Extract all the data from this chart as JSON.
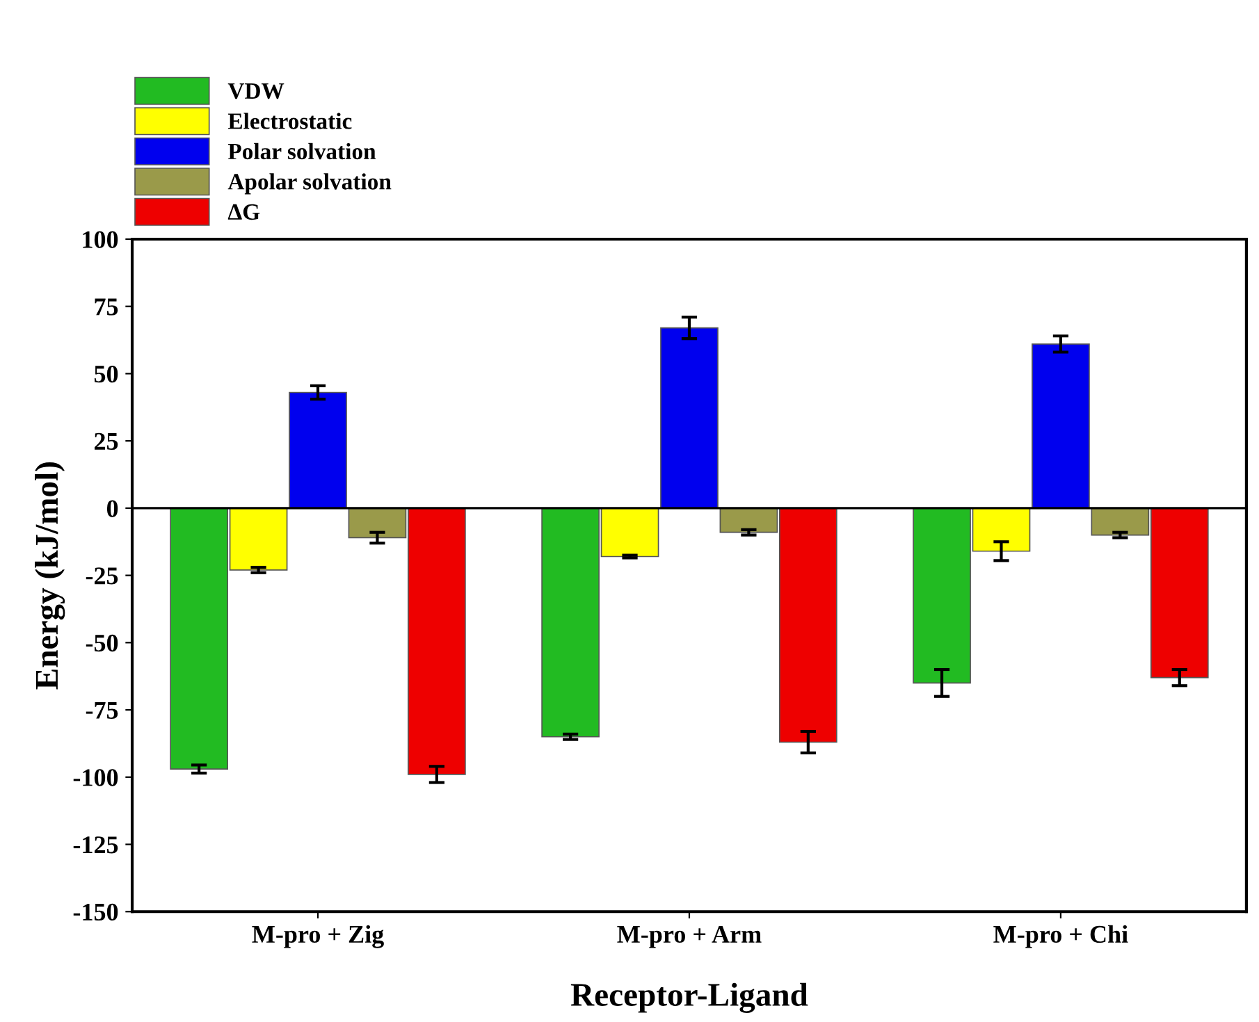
{
  "chart_data": {
    "type": "bar",
    "xlabel": "Receptor-Ligand",
    "ylabel": "Energy (kJ/mol)",
    "categories": [
      "M-pro + Zig",
      "M-pro + Arm",
      "M-pro + Chi"
    ],
    "series": [
      {
        "name": "VDW",
        "color": "#22bb22",
        "values": [
          -97,
          -85,
          -65
        ],
        "errors": [
          1.5,
          1,
          5
        ]
      },
      {
        "name": "Electrostatic",
        "color": "#ffff00",
        "values": [
          -23,
          -18,
          -16
        ],
        "errors": [
          1,
          0.5,
          3.5
        ]
      },
      {
        "name": "Polar solvation",
        "color": "#0000ee",
        "values": [
          43,
          67,
          61
        ],
        "errors": [
          2.5,
          4,
          3
        ]
      },
      {
        "name": "Apolar solvation",
        "color": "#9a9a4a",
        "values": [
          -11,
          -9,
          -10
        ],
        "errors": [
          2,
          1,
          1
        ]
      },
      {
        "name": "ΔG",
        "color": "#ee0000",
        "values": [
          -99,
          -87,
          -63
        ],
        "errors": [
          3,
          4,
          3
        ]
      }
    ],
    "ylim": [
      -150,
      100
    ],
    "yticks": [
      -150,
      -125,
      -100,
      -75,
      -50,
      -25,
      0,
      25,
      50,
      75,
      100
    ],
    "ref_lines": [
      {
        "axis": "y",
        "value": 0,
        "color": "#000000",
        "line_style": "solid"
      }
    ],
    "grid": false,
    "legend": "top left"
  }
}
